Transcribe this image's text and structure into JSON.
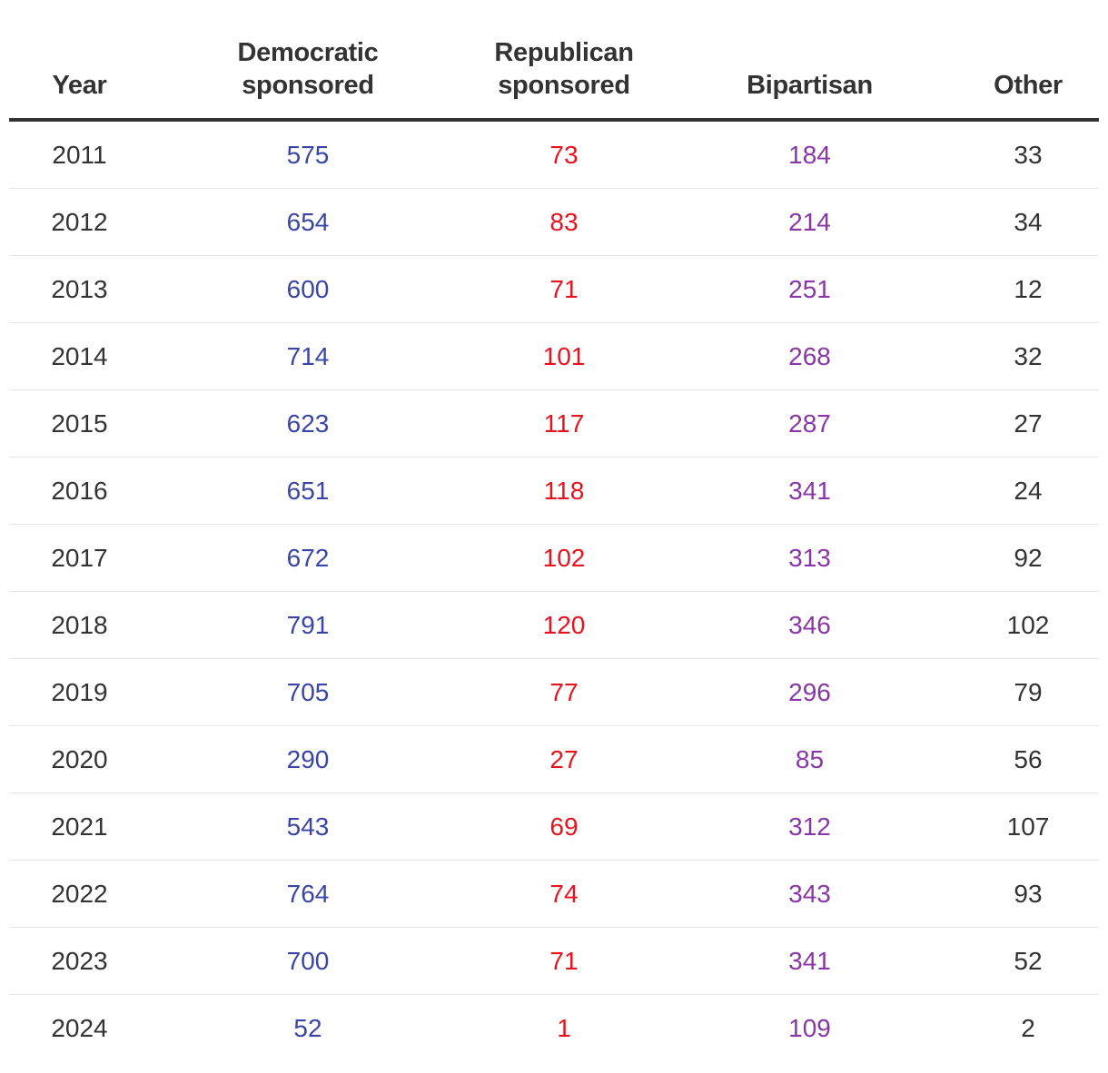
{
  "chart_data": {
    "type": "table",
    "columns": [
      "Year",
      "Democratic\nsponsored",
      "Republican\nsponsored",
      "Bipartisan",
      "Other"
    ],
    "colors": {
      "democratic": "#3a46a6",
      "republican": "#e6141e",
      "bipartisan": "#8a36a6",
      "other": "#333333",
      "year": "#333333"
    },
    "rows": [
      {
        "year": "2011",
        "dem": "575",
        "rep": "73",
        "bi": "184",
        "oth": "33"
      },
      {
        "year": "2012",
        "dem": "654",
        "rep": "83",
        "bi": "214",
        "oth": "34"
      },
      {
        "year": "2013",
        "dem": "600",
        "rep": "71",
        "bi": "251",
        "oth": "12"
      },
      {
        "year": "2014",
        "dem": "714",
        "rep": "101",
        "bi": "268",
        "oth": "32"
      },
      {
        "year": "2015",
        "dem": "623",
        "rep": "117",
        "bi": "287",
        "oth": "27"
      },
      {
        "year": "2016",
        "dem": "651",
        "rep": "118",
        "bi": "341",
        "oth": "24"
      },
      {
        "year": "2017",
        "dem": "672",
        "rep": "102",
        "bi": "313",
        "oth": "92"
      },
      {
        "year": "2018",
        "dem": "791",
        "rep": "120",
        "bi": "346",
        "oth": "102"
      },
      {
        "year": "2019",
        "dem": "705",
        "rep": "77",
        "bi": "296",
        "oth": "79"
      },
      {
        "year": "2020",
        "dem": "290",
        "rep": "27",
        "bi": "85",
        "oth": "56"
      },
      {
        "year": "2021",
        "dem": "543",
        "rep": "69",
        "bi": "312",
        "oth": "107"
      },
      {
        "year": "2022",
        "dem": "764",
        "rep": "74",
        "bi": "343",
        "oth": "93"
      },
      {
        "year": "2023",
        "dem": "700",
        "rep": "71",
        "bi": "341",
        "oth": "52"
      },
      {
        "year": "2024",
        "dem": "52",
        "rep": "1",
        "bi": "109",
        "oth": "2"
      }
    ]
  }
}
